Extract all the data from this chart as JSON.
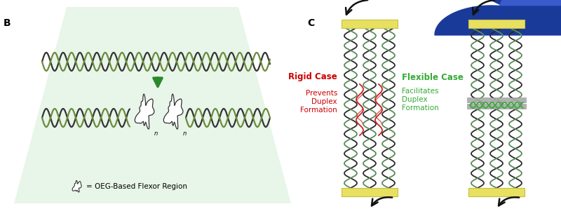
{
  "bg_color": "#ffffff",
  "panel_b_bg": "#e8f5e9",
  "panel_b_label": "B",
  "panel_c_label": "C",
  "rigid_label": "Rigid Case",
  "rigid_sublabel": "Prevents\nDuplex\nFormation",
  "rigid_color": "#cc0000",
  "flexible_label": "Flexible Case",
  "flexible_sublabel": "Facilitates\nDuplex\nFormation",
  "flexible_color": "#33aa33",
  "legend_text": "= OEG-Based Flexor Region",
  "yellow_color": "#e8e060",
  "gray_color": "#aaaaaa",
  "green_arrow_color": "#2a8a2a",
  "dna_dark": "#2a2a2a",
  "dna_light": "#5a8a5a",
  "dna_tan": "#8a7a3a",
  "red_squiggle_color": "#cc2222",
  "duplex_green": "#44aa44",
  "blue1": "#1a3a9a",
  "blue2": "#3355bb"
}
